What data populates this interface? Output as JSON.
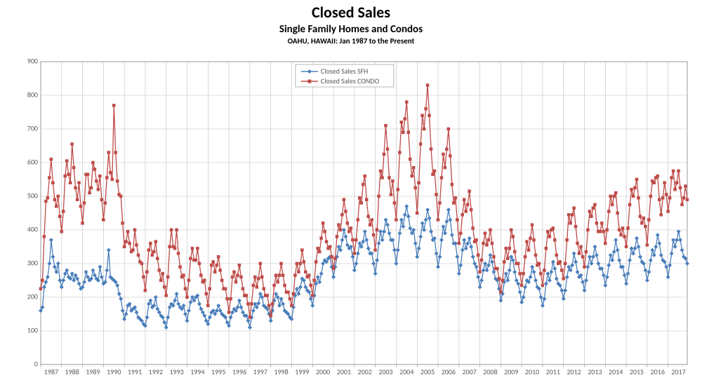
{
  "chart": {
    "type": "line",
    "title": "Closed Sales",
    "subtitle": "Single Family Homes and Condos",
    "meta": "OAHU, HAWAII: Jan 1987 to the Present",
    "background_color": "#ffffff",
    "plot_background_color": "#ffffff",
    "grid_color": "#bfbfbf",
    "axis_color": "#808080",
    "tick_label_color": "#595959",
    "title_fontsize_pt": 18,
    "subtitle_fontsize_pt": 12,
    "meta_fontsize_pt": 9,
    "tick_fontsize_pt": 8,
    "legend_fontsize_pt": 8,
    "x_years": [
      1987,
      1988,
      1989,
      1990,
      1991,
      1992,
      1993,
      1994,
      1995,
      1996,
      1997,
      1998,
      1999,
      2000,
      2001,
      2002,
      2003,
      2004,
      2005,
      2006,
      2007,
      2008,
      2009,
      2010,
      2011,
      2012,
      2013,
      2014,
      2015,
      2016,
      2017
    ],
    "n_points": 372,
    "ylim": [
      0,
      900
    ],
    "ytick_step": 100,
    "legend": {
      "position": "top-center",
      "border_color": "#999999",
      "bg_color": "#ffffff",
      "items": [
        {
          "label": "Closed Sales SFH",
          "color": "#4a7ebb",
          "marker": "diamond"
        },
        {
          "label": "Closed Sales CONDO",
          "color": "#be4b48",
          "marker": "square"
        }
      ]
    },
    "series": [
      {
        "name": "Closed Sales SFH",
        "color": "#4a7ebb",
        "marker": "diamond",
        "marker_size": 3,
        "line_width": 1.3,
        "values": [
          160,
          170,
          230,
          245,
          260,
          300,
          370,
          320,
          290,
          275,
          300,
          250,
          230,
          250,
          270,
          280,
          260,
          255,
          270,
          250,
          265,
          255,
          240,
          225,
          230,
          245,
          275,
          260,
          250,
          255,
          280,
          265,
          255,
          250,
          290,
          260,
          240,
          245,
          280,
          340,
          260,
          255,
          250,
          245,
          235,
          210,
          195,
          160,
          135,
          150,
          175,
          180,
          160,
          165,
          170,
          155,
          140,
          135,
          130,
          120,
          115,
          140,
          180,
          190,
          170,
          175,
          200,
          165,
          155,
          145,
          140,
          125,
          110,
          140,
          170,
          180,
          175,
          190,
          210,
          180,
          170,
          165,
          175,
          150,
          130,
          160,
          185,
          200,
          190,
          200,
          205,
          180,
          165,
          155,
          145,
          130,
          120,
          140,
          155,
          160,
          150,
          160,
          175,
          160,
          150,
          145,
          140,
          125,
          115,
          140,
          155,
          165,
          160,
          170,
          190,
          170,
          155,
          145,
          145,
          130,
          110,
          140,
          160,
          180,
          170,
          182,
          210,
          200,
          175,
          170,
          165,
          150,
          130,
          160,
          190,
          210,
          200,
          175,
          195,
          180,
          160,
          155,
          150,
          140,
          135,
          170,
          205,
          225,
          210,
          230,
          255,
          250,
          230,
          220,
          215,
          195,
          175,
          205,
          240,
          260,
          245,
          270,
          300,
          310,
          305,
          315,
          320,
          290,
          260,
          290,
          320,
          350,
          340,
          370,
          400,
          380,
          355,
          345,
          350,
          320,
          280,
          300,
          330,
          360,
          350,
          365,
          395,
          370,
          345,
          330,
          330,
          300,
          270,
          310,
          360,
          395,
          370,
          395,
          430,
          415,
          390,
          370,
          370,
          340,
          300,
          340,
          390,
          430,
          410,
          445,
          470,
          440,
          405,
          390,
          400,
          360,
          320,
          345,
          380,
          420,
          400,
          430,
          460,
          435,
          395,
          370,
          375,
          330,
          290,
          320,
          370,
          410,
          390,
          425,
          460,
          430,
          385,
          360,
          360,
          320,
          270,
          295,
          340,
          370,
          345,
          360,
          375,
          350,
          320,
          300,
          290,
          260,
          230,
          250,
          280,
          300,
          280,
          295,
          325,
          305,
          275,
          255,
          250,
          225,
          190,
          210,
          245,
          270,
          250,
          280,
          320,
          310,
          275,
          250,
          240,
          215,
          185,
          200,
          230,
          250,
          245,
          260,
          290,
          275,
          250,
          230,
          225,
          200,
          175,
          195,
          240,
          270,
          250,
          275,
          305,
          285,
          255,
          240,
          235,
          220,
          195,
          220,
          260,
          290,
          280,
          295,
          330,
          305,
          275,
          260,
          265,
          245,
          220,
          250,
          290,
          320,
          300,
          320,
          350,
          325,
          300,
          285,
          285,
          265,
          235,
          260,
          295,
          325,
          310,
          335,
          370,
          340,
          310,
          290,
          290,
          265,
          240,
          270,
          310,
          345,
          330,
          345,
          375,
          350,
          320,
          305,
          300,
          280,
          250,
          275,
          310,
          340,
          325,
          350,
          385,
          360,
          325,
          310,
          305,
          290,
          260,
          295,
          330,
          370,
          350,
          370,
          395,
          370,
          340,
          320,
          315,
          300
        ],
        "values_count": 372
      },
      {
        "name": "Closed Sales CONDO",
        "color": "#be4b48",
        "marker": "square",
        "marker_size": 3,
        "line_width": 1.3,
        "values": [
          225,
          250,
          380,
          485,
          495,
          555,
          610,
          540,
          490,
          470,
          500,
          440,
          395,
          455,
          560,
          605,
          565,
          540,
          655,
          585,
          525,
          490,
          540,
          470,
          420,
          480,
          565,
          565,
          510,
          525,
          600,
          580,
          545,
          520,
          560,
          490,
          430,
          480,
          555,
          630,
          570,
          550,
          770,
          630,
          545,
          505,
          500,
          420,
          350,
          365,
          395,
          360,
          335,
          340,
          400,
          355,
          325,
          305,
          300,
          260,
          220,
          275,
          340,
          360,
          325,
          335,
          365,
          315,
          280,
          250,
          270,
          230,
          205,
          260,
          350,
          400,
          350,
          345,
          400,
          330,
          290,
          260,
          265,
          225,
          200,
          250,
          315,
          345,
          310,
          310,
          345,
          300,
          265,
          245,
          250,
          210,
          175,
          225,
          295,
          305,
          275,
          295,
          320,
          280,
          250,
          225,
          225,
          195,
          155,
          195,
          260,
          275,
          245,
          265,
          295,
          260,
          225,
          205,
          205,
          180,
          140,
          180,
          235,
          260,
          230,
          255,
          300,
          260,
          225,
          205,
          205,
          175,
          145,
          180,
          235,
          265,
          245,
          265,
          300,
          265,
          235,
          215,
          215,
          195,
          175,
          210,
          265,
          300,
          275,
          300,
          340,
          305,
          275,
          260,
          265,
          235,
          205,
          250,
          305,
          345,
          335,
          375,
          420,
          395,
          365,
          345,
          350,
          320,
          285,
          315,
          380,
          415,
          400,
          445,
          490,
          455,
          420,
          395,
          405,
          370,
          330,
          370,
          430,
          495,
          480,
          535,
          560,
          490,
          440,
          415,
          430,
          385,
          340,
          400,
          500,
          575,
          555,
          625,
          710,
          640,
          555,
          505,
          545,
          480,
          430,
          520,
          630,
          720,
          690,
          730,
          780,
          690,
          610,
          560,
          585,
          525,
          450,
          540,
          655,
          740,
          700,
          760,
          830,
          740,
          640,
          565,
          575,
          505,
          430,
          480,
          555,
          625,
          585,
          640,
          700,
          620,
          535,
          480,
          495,
          430,
          360,
          390,
          445,
          490,
          455,
          475,
          515,
          460,
          405,
          365,
          370,
          325,
          275,
          310,
          360,
          390,
          355,
          370,
          400,
          360,
          320,
          285,
          285,
          255,
          215,
          250,
          305,
          345,
          315,
          345,
          400,
          380,
          335,
          300,
          300,
          270,
          235,
          270,
          320,
          365,
          340,
          375,
          415,
          370,
          325,
          295,
          300,
          270,
          235,
          280,
          345,
          395,
          380,
          400,
          405,
          370,
          325,
          300,
          305,
          280,
          255,
          300,
          370,
          445,
          420,
          445,
          465,
          410,
          360,
          330,
          350,
          320,
          290,
          335,
          400,
          455,
          440,
          465,
          475,
          420,
          395,
          395,
          420,
          395,
          360,
          400,
          455,
          500,
          475,
          500,
          510,
          450,
          400,
          385,
          405,
          380,
          350,
          405,
          475,
          520,
          500,
          525,
          550,
          495,
          440,
          420,
          435,
          410,
          355,
          430,
          500,
          545,
          540,
          555,
          560,
          490,
          445,
          495,
          540,
          505,
          455,
          495,
          555,
          575,
          520,
          540,
          575,
          525,
          475,
          495,
          530,
          490
        ],
        "values_count": 372
      }
    ]
  }
}
